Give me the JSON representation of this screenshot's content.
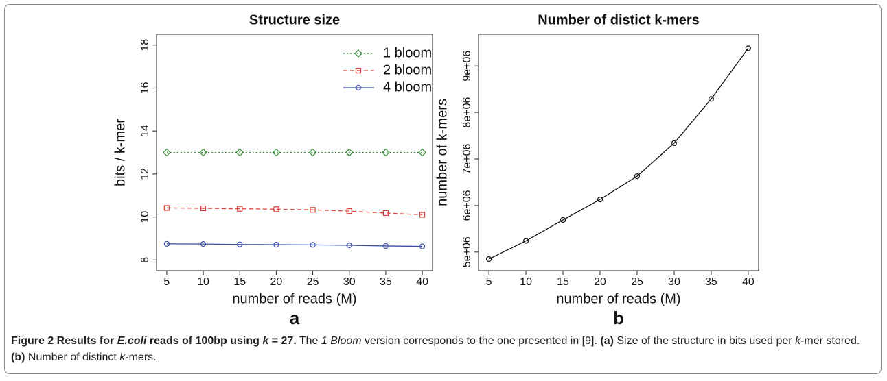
{
  "chart_data": [
    {
      "type": "line",
      "title": "Structure size",
      "panel": "a",
      "xlabel": "number of reads (M)",
      "ylabel": "bits / k-mer",
      "x": [
        5,
        10,
        15,
        20,
        25,
        30,
        35,
        40
      ],
      "xlim": [
        3.6,
        41.4
      ],
      "xticks": [
        5,
        10,
        15,
        20,
        25,
        30,
        35,
        40
      ],
      "ylim": [
        7.5,
        18.5
      ],
      "yticks": [
        8,
        10,
        12,
        14,
        16,
        18
      ],
      "legend": "top-right",
      "series": [
        {
          "name": "1 bloom",
          "color": "#2e8b2e",
          "marker": "diamond",
          "dash": "dotted",
          "values": [
            13.0,
            13.0,
            13.0,
            13.0,
            13.0,
            13.0,
            13.0,
            13.0
          ]
        },
        {
          "name": "2 bloom",
          "color": "#e0413a",
          "marker": "square",
          "dash": "dashed",
          "values": [
            10.42,
            10.4,
            10.38,
            10.36,
            10.33,
            10.27,
            10.18,
            10.1
          ]
        },
        {
          "name": "4 bloom",
          "color": "#3b4fa8",
          "marker": "circle",
          "dash": "solid",
          "values": [
            8.75,
            8.74,
            8.72,
            8.71,
            8.7,
            8.68,
            8.65,
            8.63
          ]
        }
      ]
    },
    {
      "type": "line",
      "title": "Number of distict k-mers",
      "panel": "b",
      "xlabel": "number of reads (M)",
      "ylabel": "number of k-mers",
      "x": [
        5,
        10,
        15,
        20,
        25,
        30,
        35,
        40
      ],
      "xlim": [
        3.6,
        41.4
      ],
      "xticks": [
        5,
        10,
        15,
        20,
        25,
        30,
        35,
        40
      ],
      "ylim": [
        4600000,
        9680000
      ],
      "yticks": [
        {
          "value": 5000000,
          "label": "5e+06"
        },
        {
          "value": 6000000,
          "label": "6e+06"
        },
        {
          "value": 7000000,
          "label": "7e+06"
        },
        {
          "value": 8000000,
          "label": "8e+06"
        },
        {
          "value": 9000000,
          "label": "9e+06"
        }
      ],
      "series": [
        {
          "color": "#111111",
          "marker": "circle",
          "dash": "solid",
          "values": [
            4850000,
            5240000,
            5690000,
            6130000,
            6630000,
            7340000,
            8290000,
            9380000
          ]
        }
      ]
    }
  ],
  "caption": [
    {
      "text": "Figure 2 Results for ",
      "bold": true
    },
    {
      "text": "E.coli",
      "bold": true,
      "italic": true
    },
    {
      "text": " reads of 100bp using ",
      "bold": true
    },
    {
      "text": "k",
      "bold": true,
      "italic": true
    },
    {
      "text": " = 27.",
      "bold": true
    },
    {
      "text": " The "
    },
    {
      "text": "1 Bloom",
      "italic": true
    },
    {
      "text": " version corresponds to the one presented in [9]. "
    },
    {
      "text": "(a)",
      "bold": true
    },
    {
      "text": " Size of the structure in bits used per "
    },
    {
      "text": "k",
      "italic": true
    },
    {
      "text": "-mer stored. "
    },
    {
      "text": "(b)",
      "bold": true
    },
    {
      "text": " Number of distinct "
    },
    {
      "text": "k",
      "italic": true
    },
    {
      "text": "-mers."
    }
  ]
}
